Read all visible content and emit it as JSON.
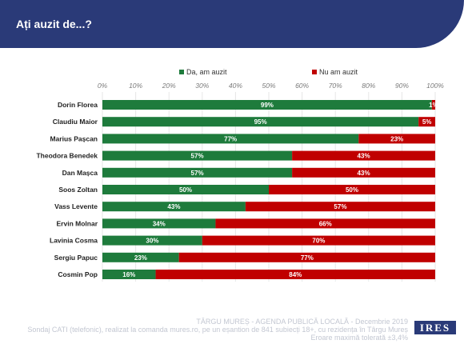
{
  "header": {
    "title": "Ați auzit de...?"
  },
  "chart_data": {
    "type": "bar",
    "orientation": "horizontal",
    "stacked": true,
    "categories": [
      "Dorin Florea",
      "Claudiu Maior",
      "Marius Pașcan",
      "Theodora Benedek",
      "Dan Mașca",
      "Soos Zoltan",
      "Vass Levente",
      "Ervin Molnar",
      "Lavinia Cosma",
      "Sergiu Papuc",
      "Cosmin Pop"
    ],
    "series": [
      {
        "name": "Da, am auzit",
        "color": "#1e7b3c",
        "values": [
          99,
          95,
          77,
          57,
          57,
          50,
          43,
          34,
          30,
          23,
          16
        ]
      },
      {
        "name": "Nu am auzit",
        "color": "#c00000",
        "values": [
          1,
          5,
          23,
          43,
          43,
          50,
          57,
          66,
          70,
          77,
          84
        ]
      }
    ],
    "x_ticks": [
      "0%",
      "10%",
      "20%",
      "30%",
      "40%",
      "50%",
      "60%",
      "70%",
      "80%",
      "90%",
      "100%"
    ],
    "xlim": [
      0,
      100
    ],
    "legend_position": "top",
    "grid": true
  },
  "footer": {
    "line1": "TÂRGU MUREȘ - AGENDA PUBLICĂ LOCALĂ - Decembrie 2019",
    "line2": "Sondaj CATI (telefonic), realizat la comanda mures.ro, pe un eșantion de 841 subiecți 18+, cu rezidența în Târgu Mureș",
    "line3": "Eroare maximă tolerată ±3,4%"
  },
  "logo": {
    "text": "IRES"
  }
}
